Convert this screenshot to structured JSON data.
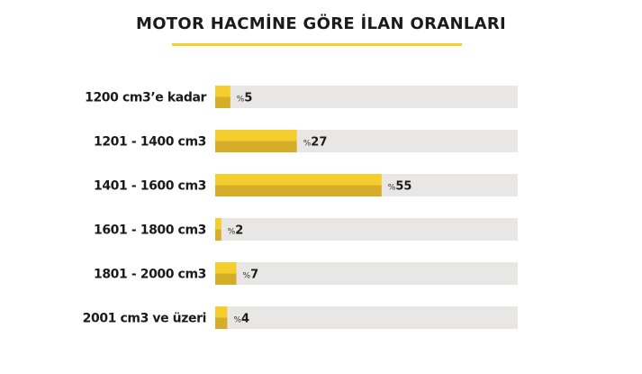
{
  "chart_data": {
    "type": "bar",
    "orientation": "horizontal",
    "title": "MOTOR HACMİNE GÖRE İLAN ORANLARI",
    "categories": [
      "1200 cm3’e kadar",
      "1201 - 1400 cm3",
      "1401 - 1600 cm3",
      "1601 - 1800 cm3",
      "1801 - 2000 cm3",
      "2001 cm3 ve üzeri"
    ],
    "values": [
      5,
      27,
      55,
      2,
      7,
      4
    ],
    "value_prefix": "%",
    "xlim": [
      0,
      100
    ],
    "grid": false,
    "legend": "none",
    "colors": {
      "bar_top": "#f5cd2c",
      "bar_bottom": "#d6ad28",
      "track": "#e8e7e6",
      "title_underline": "#f5cd2c"
    }
  }
}
